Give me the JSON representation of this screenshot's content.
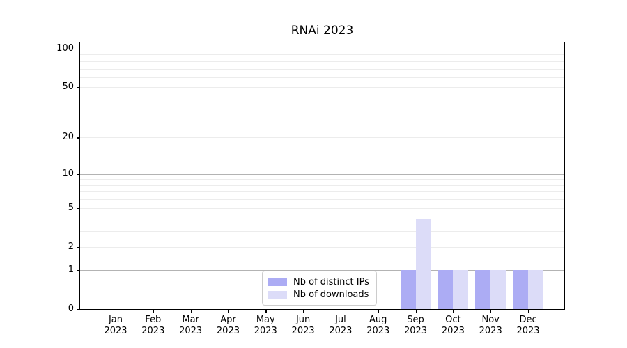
{
  "chart_data": {
    "type": "bar",
    "title": "RNAi 2023",
    "year": "2023",
    "months": [
      "Jan",
      "Feb",
      "Mar",
      "Apr",
      "May",
      "Jun",
      "Jul",
      "Aug",
      "Sep",
      "Oct",
      "Nov",
      "Dec"
    ],
    "series": [
      {
        "name": "Nb of distinct IPs",
        "color": "#acacf4",
        "values": [
          0,
          0,
          0,
          0,
          0,
          0,
          0,
          0,
          1,
          1,
          1,
          1
        ]
      },
      {
        "name": "Nb of downloads",
        "color": "#dcdcf8",
        "values": [
          0,
          0,
          0,
          0,
          0,
          0,
          0,
          0,
          4,
          1,
          1,
          1
        ]
      }
    ],
    "y_axis": {
      "scale": "log1p",
      "tick_values": [
        0,
        1,
        2,
        5,
        10,
        20,
        50,
        100
      ],
      "tick_labels": [
        "0",
        "1",
        "2",
        "5",
        "10",
        "20",
        "50",
        "100"
      ],
      "major_gridlines": [
        1,
        10,
        100
      ],
      "minor_gridlines": [
        2,
        3,
        4,
        5,
        6,
        7,
        8,
        9,
        20,
        30,
        40,
        50,
        60,
        70,
        80,
        90
      ],
      "ylim": [
        0,
        112
      ]
    },
    "legend": {
      "position": "lower center"
    },
    "colors": {
      "major_grid": "#b3b3b3",
      "minor_grid": "#ececec",
      "spine": "#000000",
      "background": "#ffffff"
    }
  }
}
